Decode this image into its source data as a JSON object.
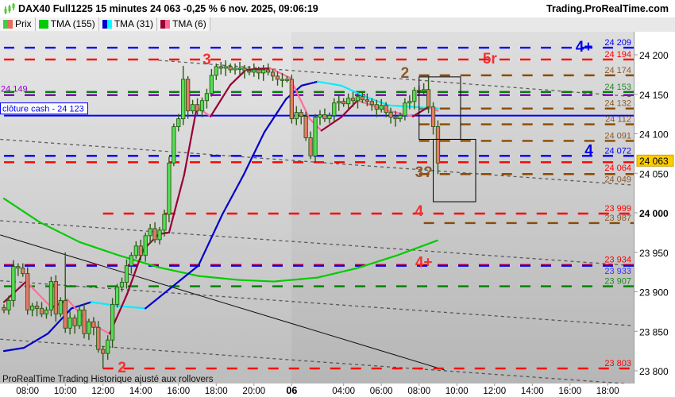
{
  "header": {
    "title": "DAX40 Full1225 15 minutes 24 063 -0,25 % 6 nov. 2025, 09:06:19",
    "site": "Trading.ProRealTime.com"
  },
  "legend": [
    {
      "label": "Prix",
      "colors": [
        "#44cc44",
        "#e07060"
      ]
    },
    {
      "label": "TMA (155)",
      "colors": [
        "#00cc00",
        "#00cc00"
      ]
    },
    {
      "label": "TMA (31)",
      "colors": [
        "#0000cc",
        "#00ffff"
      ]
    },
    {
      "label": "TMA (6)",
      "colors": [
        "#990033",
        "#ff6699"
      ]
    }
  ],
  "footer_text": "ProRealTime Trading  Historique ajusté aux rollovers",
  "chart_data": {
    "type": "candlestick",
    "ylim": [
      23783,
      24229
    ],
    "y_ticks": [
      {
        "value": 24200,
        "label": "24 200"
      },
      {
        "value": 24150,
        "label": "24 150"
      },
      {
        "value": 24100,
        "label": "24 100"
      },
      {
        "value": 24050,
        "label": "24 050"
      },
      {
        "value": 24000,
        "label": "24 000",
        "bold": true
      },
      {
        "value": 23950,
        "label": "23 950"
      },
      {
        "value": 23900,
        "label": "23 900"
      },
      {
        "value": 23850,
        "label": "23 850"
      },
      {
        "value": 23800,
        "label": "23 800"
      }
    ],
    "x_ticks": [
      {
        "bar": 5,
        "label": "08:00"
      },
      {
        "bar": 13,
        "label": "10:00"
      },
      {
        "bar": 21,
        "label": "12:00"
      },
      {
        "bar": 29,
        "label": "14:00"
      },
      {
        "bar": 37,
        "label": "16:00"
      },
      {
        "bar": 45,
        "label": "18:00"
      },
      {
        "bar": 53,
        "label": "20:00"
      },
      {
        "bar": 61,
        "label": "06",
        "bold": true
      },
      {
        "bar": 72,
        "label": "04:00"
      },
      {
        "bar": 80,
        "label": "06:00"
      },
      {
        "bar": 88,
        "label": "08:00"
      },
      {
        "bar": 96,
        "label": "10:00"
      },
      {
        "bar": 104,
        "label": "12:00"
      },
      {
        "bar": 112,
        "label": "14:00"
      },
      {
        "bar": 120,
        "label": "16:00"
      },
      {
        "bar": 128,
        "label": "18:00"
      }
    ],
    "last_price": {
      "value": 24063,
      "label": "24 063",
      "color": "#ffcc00"
    },
    "closes": [
      23877,
      23889,
      23932,
      23930,
      23923,
      23877,
      23882,
      23879,
      23872,
      23877,
      23913,
      23872,
      23889,
      23854,
      23867,
      23857,
      23877,
      23847,
      23862,
      23855,
      23827,
      23822,
      23839,
      23884,
      23906,
      23912,
      23933,
      23946,
      23958,
      23946,
      23971,
      23980,
      23966,
      23978,
      23998,
      24063,
      24109,
      24119,
      24169,
      24129,
      24137,
      24129,
      24142,
      24151,
      24174,
      24185,
      24183,
      24185,
      24181,
      24183,
      24183,
      24180,
      24178,
      24181,
      24177,
      24181,
      24178,
      24173,
      24169,
      24169,
      24169,
      24119,
      24127,
      24122,
      24095,
      24072,
      24121,
      24124,
      24119,
      24123,
      24139,
      24141,
      24138,
      24145,
      24142,
      24147,
      24143,
      24141,
      24137,
      24131,
      24136,
      24127,
      24121,
      24119,
      24123,
      24139,
      24141,
      24155,
      24154,
      24156,
      24134,
      24109,
      24063
    ],
    "first_open": 23880,
    "lows_notable": [
      {
        "bar": 21,
        "value": 23803
      },
      {
        "bar": 92,
        "value": 24049
      },
      {
        "bar": 65,
        "value": 24068
      }
    ],
    "highs_notable": [
      {
        "bar": 90,
        "value": 24172
      },
      {
        "bar": 38,
        "value": 24186
      },
      {
        "bar": 13,
        "value": 23950
      }
    ],
    "moving_averages": [
      {
        "name": "TMA (155)",
        "color_up": "#00cc00",
        "color_down": "#00cc00",
        "points": [
          [
            0,
            24018
          ],
          [
            7.6,
            23988
          ],
          [
            16,
            23963
          ],
          [
            24.4,
            23946
          ],
          [
            32.8,
            23931
          ],
          [
            41.2,
            23920
          ],
          [
            49.7,
            23915
          ],
          [
            57.2,
            23913
          ],
          [
            66.5,
            23918
          ],
          [
            74.9,
            23930
          ],
          [
            83.3,
            23946
          ],
          [
            91.9,
            23965
          ]
        ]
      },
      {
        "name": "TMA (31)",
        "color_up": "#0000cc",
        "color_down": "#00eeff",
        "points": [
          [
            0,
            23825
          ],
          [
            4.2,
            23829
          ],
          [
            9.3,
            23847
          ],
          [
            14.3,
            23879
          ],
          [
            18.5,
            23887
          ],
          [
            24.4,
            23882
          ],
          [
            30,
            23879
          ],
          [
            41.2,
            23933
          ],
          [
            46.3,
            23998
          ],
          [
            50.8,
            24048
          ],
          [
            55.2,
            24102
          ],
          [
            59.8,
            24144
          ],
          [
            63.1,
            24161
          ],
          [
            66.5,
            24166
          ],
          [
            71.5,
            24161
          ],
          [
            76.6,
            24147
          ],
          [
            81.6,
            24136
          ],
          [
            92,
            24132
          ]
        ]
      },
      {
        "name": "TMA (6)",
        "color_up": "#990033",
        "color_down": "#ff6f9a",
        "points": [
          [
            0,
            23887
          ],
          [
            4.7,
            23913
          ],
          [
            10.1,
            23880
          ],
          [
            13.5,
            23890
          ],
          [
            17.7,
            23862
          ],
          [
            22.4,
            23847
          ],
          [
            26.1,
            23897
          ],
          [
            29.5,
            23953
          ],
          [
            32.8,
            23973
          ],
          [
            35,
            23975
          ],
          [
            38.2,
            24048
          ],
          [
            40.9,
            24134
          ],
          [
            43.8,
            24122
          ],
          [
            48,
            24162
          ],
          [
            51.3,
            24181
          ],
          [
            56.4,
            24183
          ],
          [
            60.6,
            24171
          ],
          [
            64.8,
            24119
          ],
          [
            67.3,
            24104
          ],
          [
            71.5,
            24121
          ],
          [
            74.9,
            24142
          ],
          [
            81.6,
            24129
          ],
          [
            86.7,
            24122
          ],
          [
            90,
            24134
          ],
          [
            92,
            24129
          ]
        ]
      }
    ],
    "levels": [
      {
        "price": 24209,
        "label": "24 209",
        "color": "#0000ff",
        "text_color": "#0000ff",
        "from": 0
      },
      {
        "price": 24194,
        "label": "24 194",
        "color": "#ff0000",
        "text_color": "#ff0000",
        "from": 0
      },
      {
        "price": 24174,
        "label": "24 174",
        "color": "#8b4a00",
        "text_color": "#8b5a2b",
        "from": 88
      },
      {
        "price": 24153,
        "label": "24 153",
        "color": "#008000",
        "text_color": "#228b22",
        "from": 0
      },
      {
        "price": 24149,
        "label": "",
        "color": "#8000c0",
        "text_color": "#8000c0",
        "from": 0
      },
      {
        "price": 24132,
        "label": "24 132",
        "color": "#8b4a00",
        "text_color": "#8b5a2b",
        "from": 88
      },
      {
        "price": 24123,
        "label": "",
        "color": "#0000ff",
        "text_color": "#0000ff",
        "from": 0,
        "solid": true
      },
      {
        "price": 24112,
        "label": "24 112",
        "color": "#8b4a00",
        "text_color": "#8b5a2b",
        "from": 88
      },
      {
        "price": 24091,
        "label": "24 091",
        "color": "#8b4a00",
        "text_color": "#8b5a2b",
        "from": 88
      },
      {
        "price": 24072,
        "label": "24 072",
        "color": "#0000ff",
        "text_color": "#0000ff",
        "from": 0
      },
      {
        "price": 24064,
        "label": "24 064",
        "color": "#ff0000",
        "text_color": "#ff0000",
        "from": 0
      },
      {
        "price": 24049,
        "label": "24 049",
        "color": "#8b4a00",
        "text_color": "#8b5a2b",
        "from": 88
      },
      {
        "price": 23999,
        "label": "23 999",
        "color": "#ff0000",
        "text_color": "#ff0000",
        "from": 21
      },
      {
        "price": 23987,
        "label": "23 987",
        "color": "#8b4a00",
        "text_color": "#8b5a2b",
        "from": 89
      },
      {
        "price": 23934,
        "label": "23 934",
        "color": "#ff0000",
        "text_color": "#ff0000",
        "from": 0
      },
      {
        "price": 23933,
        "label": "23 933",
        "color": "#0000ff",
        "text_color": "#3333ff",
        "from": 0
      },
      {
        "price": 23907,
        "label": "23 907",
        "color": "#008000",
        "text_color": "#228b22",
        "from": 0
      },
      {
        "price": 23803,
        "label": "23 803",
        "color": "#ff0000",
        "text_color": "#ff0000",
        "from": 21
      }
    ],
    "left_labels": [
      {
        "price": 24149,
        "text": "24 149",
        "color": "#9900cc"
      },
      {
        "price": 24123,
        "text": "clôture cash -  24 123",
        "color": "#0000ff",
        "boxed": true
      }
    ],
    "annotations": [
      {
        "text": "3",
        "bar": 43,
        "price": 24190,
        "color": "#ee3333"
      },
      {
        "text": "5r",
        "bar": 103,
        "price": 24191,
        "color": "#ee3333"
      },
      {
        "text": "2",
        "bar": 85,
        "price": 24173,
        "color": "#8b5a2b"
      },
      {
        "text": "4+",
        "bar": 123,
        "price": 24206,
        "color": "#0000ee"
      },
      {
        "text": "4",
        "bar": 124,
        "price": 24075,
        "color": "#0000ee"
      },
      {
        "text": "3?",
        "bar": 89,
        "price": 24047,
        "color": "#8b5a2b"
      },
      {
        "text": "4",
        "bar": 88,
        "price": 23998,
        "color": "#ee3333"
      },
      {
        "text": "4+",
        "bar": 89,
        "price": 23933,
        "color": "#ee3333"
      },
      {
        "text": "2",
        "bar": 25,
        "price": 23800,
        "color": "#ee3333"
      }
    ],
    "boxes": [
      {
        "bar_from": 88,
        "bar_to": 96.8,
        "price_top": 24172,
        "price_bottom": 24093
      },
      {
        "bar_from": 91,
        "bar_to": 100,
        "price_top": 24093,
        "price_bottom": 24014
      }
    ],
    "trendlines": [
      {
        "style": "dotted",
        "from": [
          32.8,
          24193
        ],
        "to": [
          133.5,
          24147
        ]
      },
      {
        "style": "dotted",
        "from": [
          -0.8,
          24093
        ],
        "to": [
          133.5,
          24035
        ]
      },
      {
        "style": "dotted",
        "from": [
          -0.8,
          23990
        ],
        "to": [
          133.5,
          23933
        ]
      },
      {
        "style": "dotted",
        "from": [
          -0.8,
          23914
        ],
        "to": [
          133.5,
          23857
        ]
      },
      {
        "style": "dotted",
        "from": [
          -0.8,
          23840
        ],
        "to": [
          133.5,
          23783
        ]
      },
      {
        "style": "solid",
        "from": [
          -0.8,
          23972
        ],
        "to": [
          93.4,
          23801
        ]
      }
    ]
  }
}
